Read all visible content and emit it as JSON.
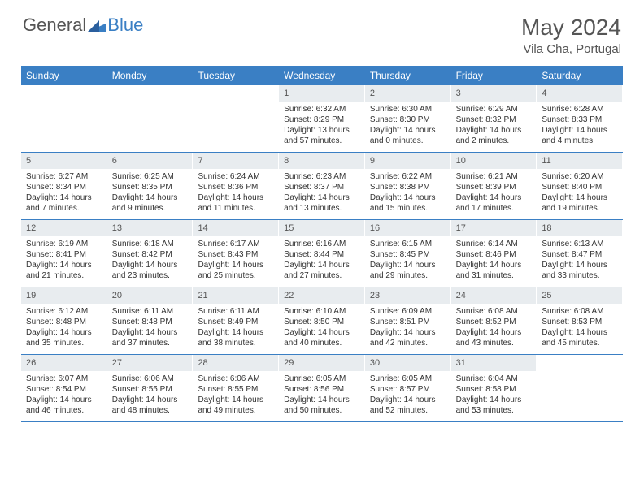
{
  "brand": {
    "general": "General",
    "blue": "Blue"
  },
  "title": "May 2024",
  "location": "Vila Cha, Portugal",
  "colors": {
    "header_bg": "#3a7fc4",
    "header_text": "#ffffff",
    "daynum_bg": "#e8ecef",
    "text": "#555555",
    "body_text": "#333333"
  },
  "day_names": [
    "Sunday",
    "Monday",
    "Tuesday",
    "Wednesday",
    "Thursday",
    "Friday",
    "Saturday"
  ],
  "weeks": [
    [
      null,
      null,
      null,
      {
        "n": "1",
        "sr": "Sunrise: 6:32 AM",
        "ss": "Sunset: 8:29 PM",
        "dl": "Daylight: 13 hours and 57 minutes."
      },
      {
        "n": "2",
        "sr": "Sunrise: 6:30 AM",
        "ss": "Sunset: 8:30 PM",
        "dl": "Daylight: 14 hours and 0 minutes."
      },
      {
        "n": "3",
        "sr": "Sunrise: 6:29 AM",
        "ss": "Sunset: 8:32 PM",
        "dl": "Daylight: 14 hours and 2 minutes."
      },
      {
        "n": "4",
        "sr": "Sunrise: 6:28 AM",
        "ss": "Sunset: 8:33 PM",
        "dl": "Daylight: 14 hours and 4 minutes."
      }
    ],
    [
      {
        "n": "5",
        "sr": "Sunrise: 6:27 AM",
        "ss": "Sunset: 8:34 PM",
        "dl": "Daylight: 14 hours and 7 minutes."
      },
      {
        "n": "6",
        "sr": "Sunrise: 6:25 AM",
        "ss": "Sunset: 8:35 PM",
        "dl": "Daylight: 14 hours and 9 minutes."
      },
      {
        "n": "7",
        "sr": "Sunrise: 6:24 AM",
        "ss": "Sunset: 8:36 PM",
        "dl": "Daylight: 14 hours and 11 minutes."
      },
      {
        "n": "8",
        "sr": "Sunrise: 6:23 AM",
        "ss": "Sunset: 8:37 PM",
        "dl": "Daylight: 14 hours and 13 minutes."
      },
      {
        "n": "9",
        "sr": "Sunrise: 6:22 AM",
        "ss": "Sunset: 8:38 PM",
        "dl": "Daylight: 14 hours and 15 minutes."
      },
      {
        "n": "10",
        "sr": "Sunrise: 6:21 AM",
        "ss": "Sunset: 8:39 PM",
        "dl": "Daylight: 14 hours and 17 minutes."
      },
      {
        "n": "11",
        "sr": "Sunrise: 6:20 AM",
        "ss": "Sunset: 8:40 PM",
        "dl": "Daylight: 14 hours and 19 minutes."
      }
    ],
    [
      {
        "n": "12",
        "sr": "Sunrise: 6:19 AM",
        "ss": "Sunset: 8:41 PM",
        "dl": "Daylight: 14 hours and 21 minutes."
      },
      {
        "n": "13",
        "sr": "Sunrise: 6:18 AM",
        "ss": "Sunset: 8:42 PM",
        "dl": "Daylight: 14 hours and 23 minutes."
      },
      {
        "n": "14",
        "sr": "Sunrise: 6:17 AM",
        "ss": "Sunset: 8:43 PM",
        "dl": "Daylight: 14 hours and 25 minutes."
      },
      {
        "n": "15",
        "sr": "Sunrise: 6:16 AM",
        "ss": "Sunset: 8:44 PM",
        "dl": "Daylight: 14 hours and 27 minutes."
      },
      {
        "n": "16",
        "sr": "Sunrise: 6:15 AM",
        "ss": "Sunset: 8:45 PM",
        "dl": "Daylight: 14 hours and 29 minutes."
      },
      {
        "n": "17",
        "sr": "Sunrise: 6:14 AM",
        "ss": "Sunset: 8:46 PM",
        "dl": "Daylight: 14 hours and 31 minutes."
      },
      {
        "n": "18",
        "sr": "Sunrise: 6:13 AM",
        "ss": "Sunset: 8:47 PM",
        "dl": "Daylight: 14 hours and 33 minutes."
      }
    ],
    [
      {
        "n": "19",
        "sr": "Sunrise: 6:12 AM",
        "ss": "Sunset: 8:48 PM",
        "dl": "Daylight: 14 hours and 35 minutes."
      },
      {
        "n": "20",
        "sr": "Sunrise: 6:11 AM",
        "ss": "Sunset: 8:48 PM",
        "dl": "Daylight: 14 hours and 37 minutes."
      },
      {
        "n": "21",
        "sr": "Sunrise: 6:11 AM",
        "ss": "Sunset: 8:49 PM",
        "dl": "Daylight: 14 hours and 38 minutes."
      },
      {
        "n": "22",
        "sr": "Sunrise: 6:10 AM",
        "ss": "Sunset: 8:50 PM",
        "dl": "Daylight: 14 hours and 40 minutes."
      },
      {
        "n": "23",
        "sr": "Sunrise: 6:09 AM",
        "ss": "Sunset: 8:51 PM",
        "dl": "Daylight: 14 hours and 42 minutes."
      },
      {
        "n": "24",
        "sr": "Sunrise: 6:08 AM",
        "ss": "Sunset: 8:52 PM",
        "dl": "Daylight: 14 hours and 43 minutes."
      },
      {
        "n": "25",
        "sr": "Sunrise: 6:08 AM",
        "ss": "Sunset: 8:53 PM",
        "dl": "Daylight: 14 hours and 45 minutes."
      }
    ],
    [
      {
        "n": "26",
        "sr": "Sunrise: 6:07 AM",
        "ss": "Sunset: 8:54 PM",
        "dl": "Daylight: 14 hours and 46 minutes."
      },
      {
        "n": "27",
        "sr": "Sunrise: 6:06 AM",
        "ss": "Sunset: 8:55 PM",
        "dl": "Daylight: 14 hours and 48 minutes."
      },
      {
        "n": "28",
        "sr": "Sunrise: 6:06 AM",
        "ss": "Sunset: 8:55 PM",
        "dl": "Daylight: 14 hours and 49 minutes."
      },
      {
        "n": "29",
        "sr": "Sunrise: 6:05 AM",
        "ss": "Sunset: 8:56 PM",
        "dl": "Daylight: 14 hours and 50 minutes."
      },
      {
        "n": "30",
        "sr": "Sunrise: 6:05 AM",
        "ss": "Sunset: 8:57 PM",
        "dl": "Daylight: 14 hours and 52 minutes."
      },
      {
        "n": "31",
        "sr": "Sunrise: 6:04 AM",
        "ss": "Sunset: 8:58 PM",
        "dl": "Daylight: 14 hours and 53 minutes."
      },
      null
    ]
  ]
}
